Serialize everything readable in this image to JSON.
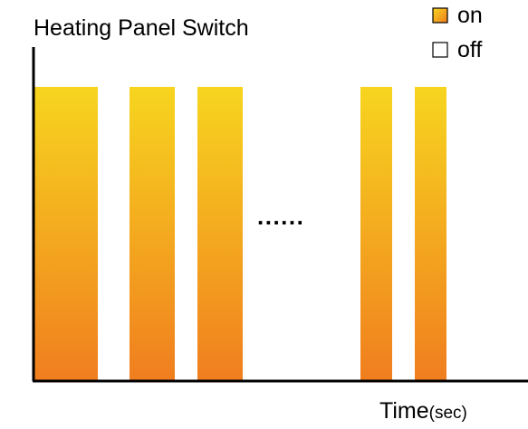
{
  "chart_data": {
    "type": "bar",
    "title": "Heating Panel Switch",
    "xlabel": "Time",
    "xlabel_unit": "(sec)",
    "ylabel": "",
    "ellipsis": "......",
    "ylim": [
      0,
      1
    ],
    "legend": {
      "placement": "top-right",
      "entries": [
        {
          "name": "on",
          "key": "on"
        },
        {
          "name": "off",
          "key": "off"
        }
      ]
    },
    "series": [
      {
        "name": "on",
        "segments": [
          {
            "start": 0,
            "end": 7,
            "value": 1
          },
          {
            "start": 10.5,
            "end": 15.5,
            "value": 1
          },
          {
            "start": 18,
            "end": 23,
            "value": 1
          },
          {
            "start": 36,
            "end": 39.5,
            "value": 1
          },
          {
            "start": 42,
            "end": 45.5,
            "value": 1
          }
        ]
      }
    ],
    "colors": {
      "on_top": "#f7d51f",
      "on_bottom": "#f07e1f",
      "off_fill": "#ffffff",
      "axis": "#000000"
    },
    "grid": false
  }
}
